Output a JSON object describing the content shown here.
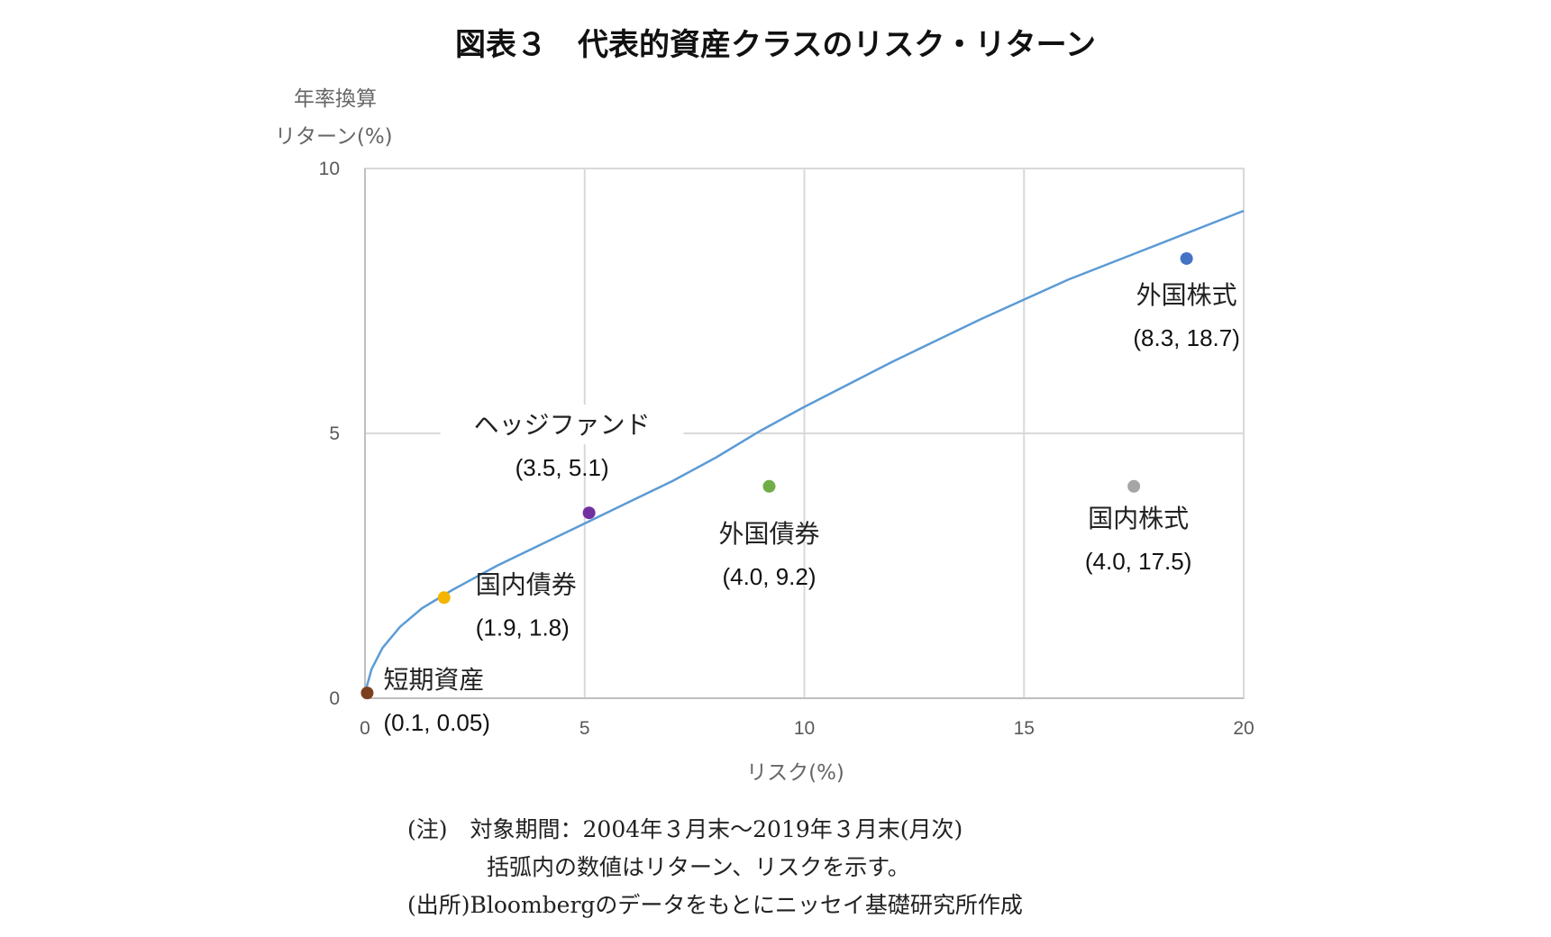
{
  "title": "図表３　代表的資産クラスのリスク・リターン",
  "chart_data": {
    "type": "scatter",
    "title": "図表３　代表的資産クラスのリスク・リターン",
    "ylabel_lines": [
      "年率換算",
      "リターン(%)"
    ],
    "xlabel": "リスク(%)",
    "xlim": [
      0,
      20
    ],
    "ylim": [
      0,
      10
    ],
    "xticks": [
      "0",
      "5",
      "10",
      "15",
      "20"
    ],
    "yticks": [
      "0",
      "5",
      "10"
    ],
    "grid": true,
    "points": [
      {
        "name": "短期資産",
        "label": "(0.1, 0.05)",
        "x": 0.05,
        "y": 0.1,
        "color": "#7b3f1e"
      },
      {
        "name": "国内債券",
        "label": "(1.9, 1.8)",
        "x": 1.8,
        "y": 1.9,
        "color": "#f4b400"
      },
      {
        "name": "ヘッジファンド",
        "label": "(3.5, 5.1)",
        "x": 5.1,
        "y": 3.5,
        "color": "#7030a0"
      },
      {
        "name": "外国債券",
        "label": "(4.0, 9.2)",
        "x": 9.2,
        "y": 4.0,
        "color": "#70ad47"
      },
      {
        "name": "国内株式",
        "label": "(4.0, 17.5)",
        "x": 17.5,
        "y": 4.0,
        "color": "#a5a5a5"
      },
      {
        "name": "外国株式",
        "label": "(8.3, 18.7)",
        "x": 18.7,
        "y": 8.3,
        "color": "#4472c4"
      }
    ],
    "frontier_color": "#5b9bd5",
    "frontier": [
      [
        0.0,
        0.1
      ],
      [
        0.15,
        0.55
      ],
      [
        0.4,
        0.95
      ],
      [
        0.8,
        1.35
      ],
      [
        1.3,
        1.7
      ],
      [
        2.0,
        2.05
      ],
      [
        3.0,
        2.5
      ],
      [
        4.0,
        2.9
      ],
      [
        5.0,
        3.3
      ],
      [
        6.0,
        3.7
      ],
      [
        7.0,
        4.1
      ],
      [
        8.0,
        4.55
      ],
      [
        9.0,
        5.05
      ],
      [
        10.0,
        5.5
      ],
      [
        12.0,
        6.35
      ],
      [
        14.0,
        7.15
      ],
      [
        16.0,
        7.9
      ],
      [
        18.0,
        8.55
      ],
      [
        20.0,
        9.2
      ]
    ]
  },
  "notes": [
    "(注)　対象期間：2004年３月末～2019年３月末(月次)",
    "括弧内の数値はリターン、リスクを示す。",
    "(出所)Bloombergのデータをもとにニッセイ基礎研究所作成"
  ]
}
